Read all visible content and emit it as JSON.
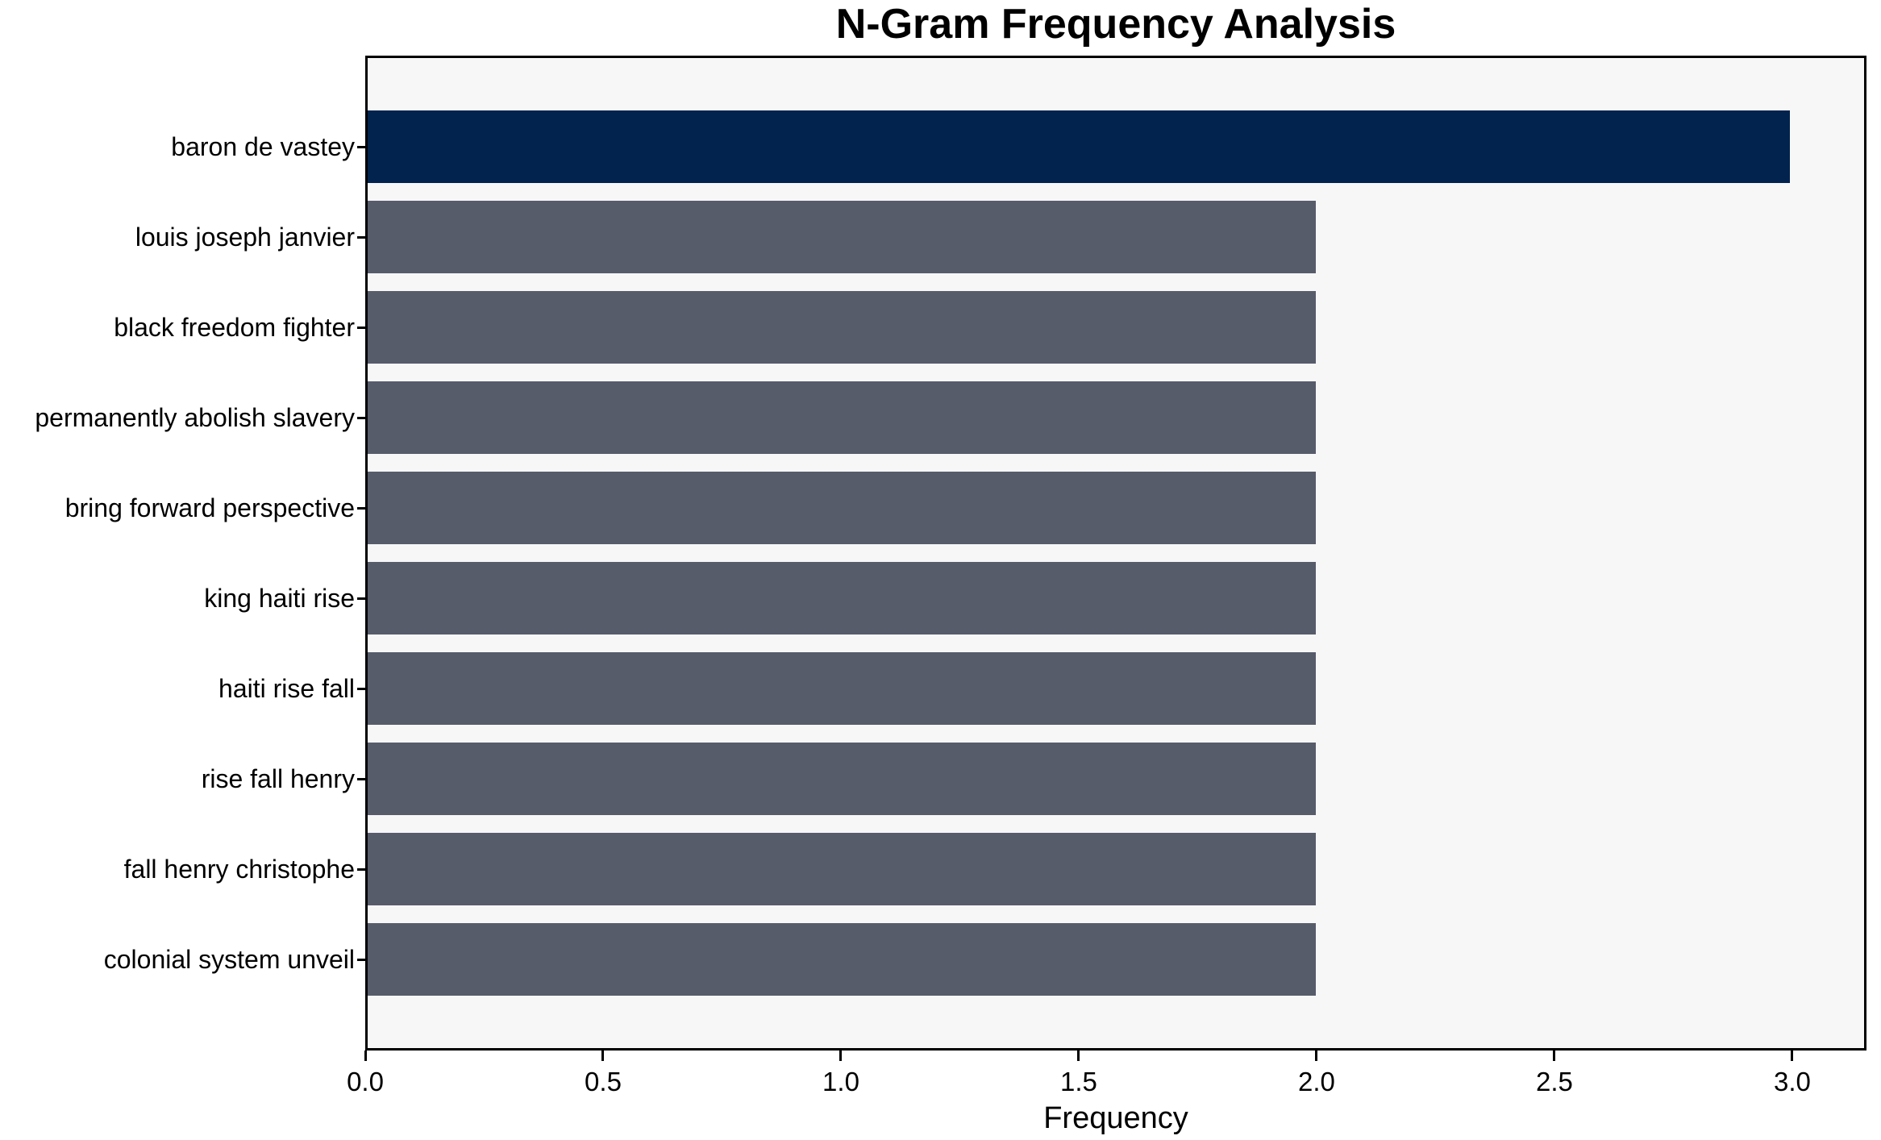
{
  "chart_data": {
    "type": "bar",
    "orientation": "horizontal",
    "title": "N-Gram Frequency Analysis",
    "xlabel": "Frequency",
    "ylabel": "",
    "categories": [
      "baron de vastey",
      "louis joseph janvier",
      "black freedom fighter",
      "permanently abolish slavery",
      "bring forward perspective",
      "king haiti rise",
      "haiti rise fall",
      "rise fall henry",
      "fall henry christophe",
      "colonial system unveil"
    ],
    "values": [
      3,
      2,
      2,
      2,
      2,
      2,
      2,
      2,
      2,
      2
    ],
    "xlim": [
      0,
      3.156
    ],
    "xtick_values": [
      0,
      0.5,
      1.0,
      1.5,
      2.0,
      2.5,
      3.0
    ],
    "xtick_labels": [
      "0.0",
      "0.5",
      "1.0",
      "1.5",
      "2.0",
      "2.5",
      "3.0"
    ],
    "grid": false,
    "legend": false,
    "colors": {
      "bar_highlight": "#02234e",
      "bar_default": "#575c6b",
      "plot_background": "#f7f7f8",
      "figure_background": "#ffffff",
      "spine": "#000000",
      "text": "#000000"
    }
  }
}
